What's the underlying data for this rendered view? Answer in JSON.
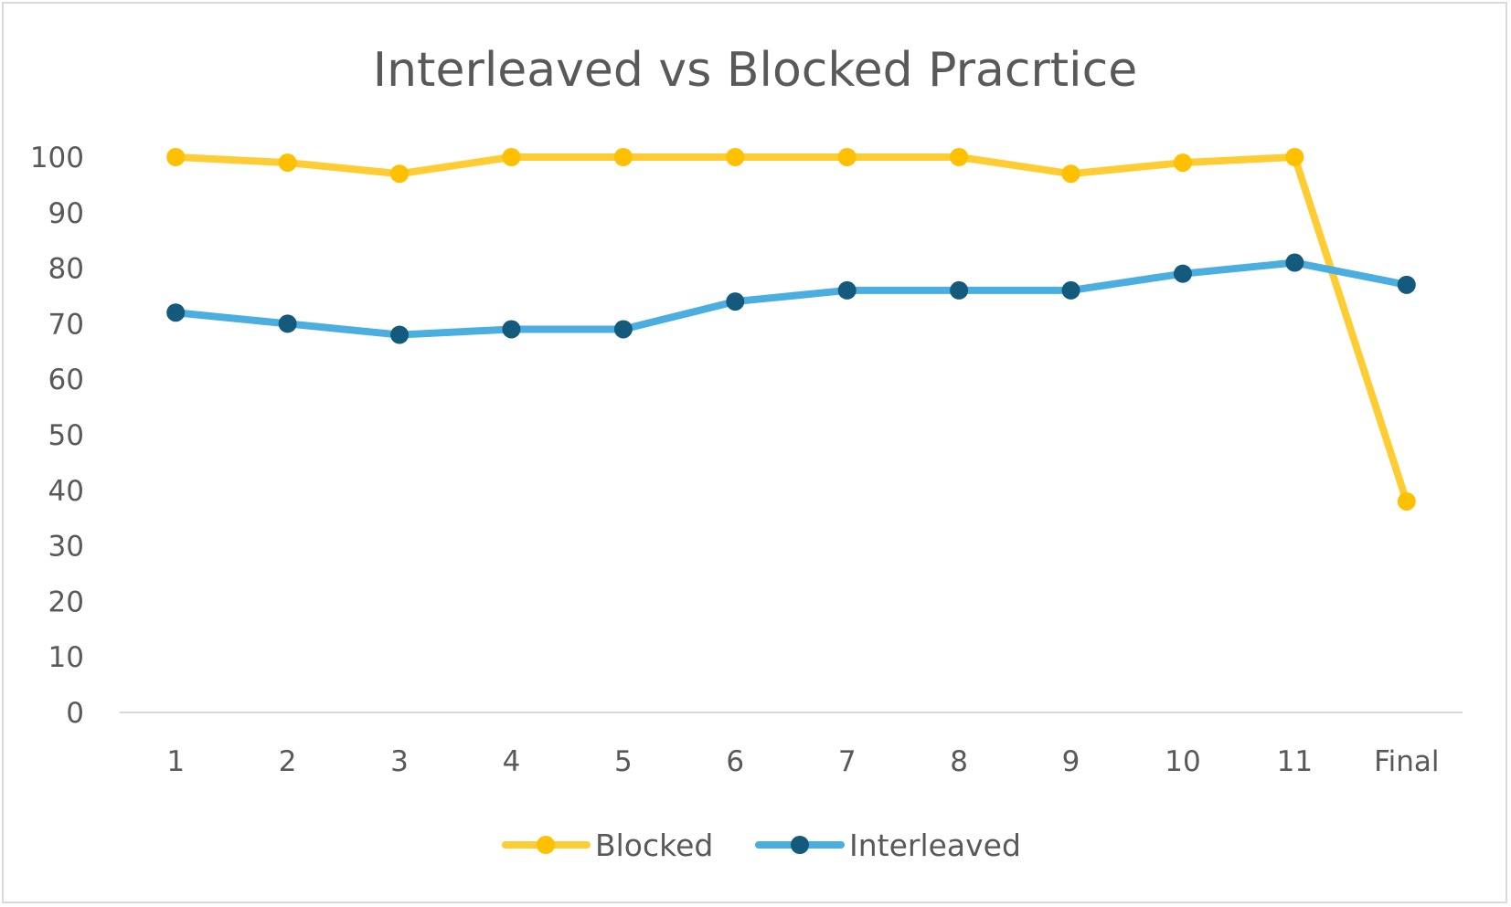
{
  "chart_data": {
    "type": "line",
    "title": "Interleaved vs Blocked Pracrtice",
    "xlabel": "",
    "ylabel": "",
    "categories": [
      "1",
      "2",
      "3",
      "4",
      "5",
      "6",
      "7",
      "8",
      "9",
      "10",
      "11",
      "Final"
    ],
    "ylim": [
      0,
      100
    ],
    "yticks": [
      0,
      10,
      20,
      30,
      40,
      50,
      60,
      70,
      80,
      90,
      100
    ],
    "grid": false,
    "legend": "bottom",
    "series": [
      {
        "name": "Blocked",
        "color": "#FFCD33",
        "marker_color": "#FFC000",
        "values": [
          100,
          99,
          97,
          100,
          100,
          100,
          100,
          100,
          97,
          99,
          100,
          38
        ]
      },
      {
        "name": "Interleaved",
        "color": "#4BAEE0",
        "marker_color": "#145A7D",
        "values": [
          72,
          70,
          68,
          69,
          69,
          74,
          76,
          76,
          76,
          79,
          81,
          77
        ]
      }
    ]
  }
}
